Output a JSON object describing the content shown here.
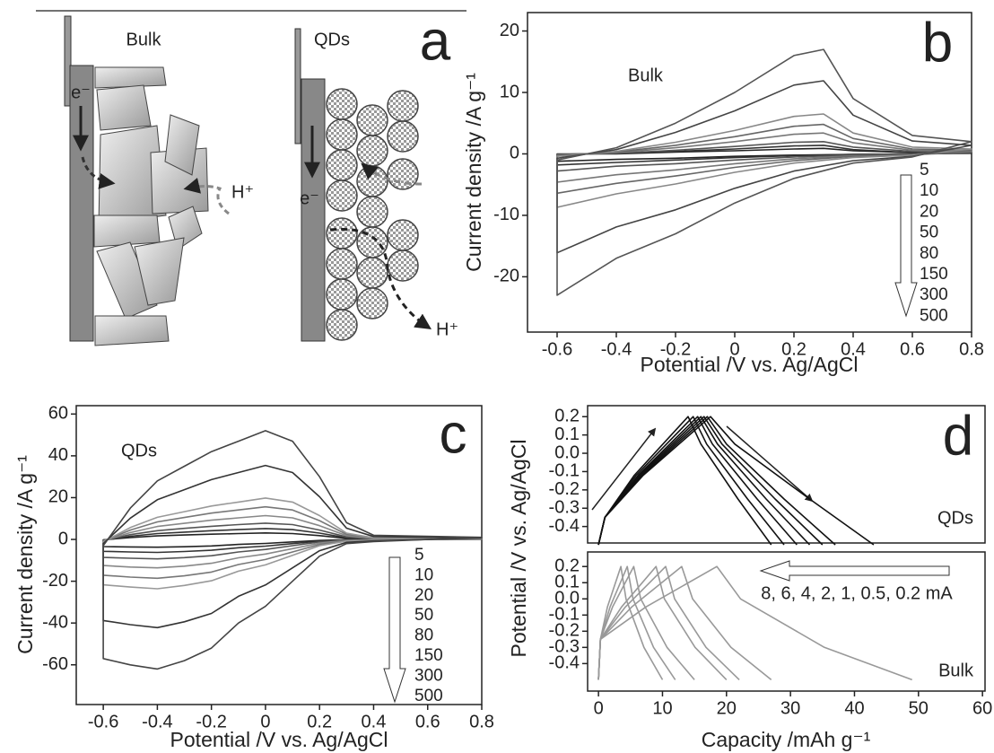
{
  "diagram": {
    "panel_label": "a",
    "bulk": {
      "title": "Bulk",
      "electron": "e⁻",
      "proton": "H⁺"
    },
    "qds": {
      "title": "QDs",
      "electron": "e⁻",
      "proton": "H⁺"
    }
  },
  "chart_data": [
    {
      "type": "line",
      "panel_label": "b",
      "annotation": "Bulk",
      "xlabel": "Potential /V vs. Ag/AgCl",
      "ylabel": "Current density /A g⁻¹",
      "xlim": [
        -0.7,
        0.8
      ],
      "ylim": [
        -29,
        23
      ],
      "xticks": [
        -0.6,
        -0.4,
        -0.2,
        0,
        0.2,
        0.4,
        0.6,
        0.8
      ],
      "yticks": [
        -20,
        -10,
        0,
        10,
        20
      ],
      "x": [
        -0.6,
        -0.4,
        -0.2,
        0,
        0.2,
        0.3,
        0.4,
        0.6,
        0.8,
        0.6,
        0.4,
        0.2,
        0,
        -0.2,
        -0.4,
        -0.6
      ],
      "series": [
        {
          "name": "5",
          "color": "#222",
          "values": [
            0,
            0,
            0.3,
            0.5,
            0.8,
            0.9,
            0.5,
            0.2,
            0.1,
            0,
            -0.1,
            -0.2,
            -0.4,
            -0.7,
            -0.9,
            -1.2
          ]
        },
        {
          "name": "10",
          "color": "#333",
          "values": [
            -0.1,
            0.1,
            0.4,
            0.8,
            1.3,
            1.4,
            0.7,
            0.2,
            0.2,
            0,
            -0.1,
            -0.3,
            -0.6,
            -1,
            -1.4,
            -1.8
          ]
        },
        {
          "name": "20",
          "color": "#555",
          "values": [
            -0.1,
            0.1,
            0.6,
            1.2,
            1.9,
            2,
            1.1,
            0.4,
            0.2,
            -0.1,
            -0.2,
            -0.5,
            -1,
            -1.6,
            -2,
            -2.8
          ]
        },
        {
          "name": "50",
          "color": "#777",
          "values": [
            -0.2,
            0.2,
            1,
            2,
            3.2,
            3.4,
            1.8,
            0.6,
            0.4,
            -0.1,
            -0.3,
            -0.8,
            -1.6,
            -2.6,
            -3.4,
            -4.6
          ]
        },
        {
          "name": "80",
          "color": "#666",
          "values": [
            -0.3,
            0.3,
            1.4,
            2.8,
            4.5,
            4.8,
            2.5,
            0.8,
            0.6,
            -0.1,
            -0.4,
            -1.1,
            -2.2,
            -3.6,
            -4.8,
            -6.4
          ]
        },
        {
          "name": "150",
          "color": "#888",
          "values": [
            -0.4,
            0.4,
            1.9,
            3.8,
            6.1,
            6.5,
            3.4,
            1.1,
            0.8,
            -0.2,
            -0.6,
            -1.5,
            -3,
            -4.9,
            -6.5,
            -8.7
          ]
        },
        {
          "name": "300",
          "color": "#444",
          "values": [
            -0.7,
            0.7,
            3.5,
            7,
            11.2,
            11.9,
            6.3,
            2.1,
            1.4,
            -0.4,
            -1.1,
            -2.8,
            -5.6,
            -9.1,
            -11.9,
            -16.1
          ]
        },
        {
          "name": "500",
          "color": "#555",
          "values": [
            -1,
            1,
            5,
            10,
            16,
            17,
            9,
            3,
            2,
            -0.5,
            -1.5,
            -4,
            -8,
            -13,
            -17,
            -23
          ]
        }
      ]
    },
    {
      "type": "line",
      "panel_label": "c",
      "annotation": "QDs",
      "xlabel": "Potential /V vs. Ag/AgCl",
      "ylabel": "Current density /A g⁻¹",
      "xlim": [
        -0.7,
        0.8
      ],
      "ylim": [
        -79,
        64
      ],
      "xticks": [
        -0.6,
        -0.4,
        -0.2,
        0,
        0.2,
        0.4,
        0.6,
        0.8
      ],
      "yticks": [
        -60,
        -40,
        -20,
        0,
        20,
        40,
        60
      ],
      "x": [
        -0.6,
        -0.5,
        -0.4,
        -0.3,
        -0.2,
        -0.1,
        0,
        0.1,
        0.2,
        0.3,
        0.4,
        0.8,
        0.4,
        0.3,
        0.2,
        0.1,
        0,
        -0.1,
        -0.2,
        -0.3,
        -0.4,
        -0.5,
        -0.6
      ],
      "series": [
        {
          "name": "5",
          "color": "#222",
          "values": [
            -0.2,
            0.9,
            1.7,
            2.1,
            2.5,
            2.8,
            3.1,
            2.8,
            1.8,
            0.5,
            0.1,
            0.1,
            -0.1,
            -0.1,
            -0.5,
            -1.2,
            -1.9,
            -2.4,
            -3.1,
            -3.5,
            -3.7,
            -3.6,
            -3.4
          ]
        },
        {
          "name": "10",
          "color": "#333",
          "values": [
            -0.3,
            1.5,
            2.8,
            3.5,
            4.2,
            4.7,
            5.2,
            4.7,
            3,
            0.8,
            0.2,
            0.1,
            -0.1,
            -0.2,
            -0.8,
            -2,
            -3.2,
            -4,
            -5.2,
            -5.8,
            -6.2,
            -6,
            -5.7
          ]
        },
        {
          "name": "20",
          "color": "#555",
          "values": [
            -0.5,
            2.3,
            4.2,
            5.3,
            6.3,
            7.1,
            7.8,
            7.1,
            4.5,
            1.2,
            0.3,
            0.2,
            -0.2,
            -0.3,
            -1.2,
            -3,
            -4.8,
            -6,
            -7.8,
            -8.7,
            -9.3,
            -9,
            -8.6
          ]
        },
        {
          "name": "50",
          "color": "#888",
          "values": [
            -0.7,
            3.3,
            6.2,
            7.7,
            9.2,
            10.3,
            11.4,
            10.3,
            6.6,
            1.8,
            0.4,
            0.2,
            -0.2,
            -0.4,
            -1.8,
            -4.4,
            -7,
            -8.8,
            -11.4,
            -12.8,
            -13.6,
            -13.2,
            -12.5
          ]
        },
        {
          "name": "80",
          "color": "#777",
          "values": [
            -0.9,
            4.5,
            8.4,
            10.5,
            12.6,
            14.1,
            15.6,
            14.1,
            9,
            2.4,
            0.6,
            0.3,
            -0.3,
            -0.6,
            -2.4,
            -6,
            -9.6,
            -12,
            -15.6,
            -17.4,
            -18.6,
            -18,
            -17.1
          ]
        },
        {
          "name": "150",
          "color": "#999",
          "values": [
            -1.1,
            5.7,
            10.6,
            13.3,
            16,
            17.9,
            19.8,
            17.9,
            11.4,
            3,
            0.8,
            0.4,
            -0.4,
            -0.8,
            -3,
            -7.6,
            -12.2,
            -15.2,
            -19.8,
            -22,
            -23.6,
            -22.8,
            -21.7
          ]
        },
        {
          "name": "300",
          "color": "#333",
          "values": [
            -2,
            10.2,
            19,
            23.8,
            28.6,
            32,
            35.4,
            32,
            20.4,
            5.4,
            1.4,
            0.7,
            -0.7,
            -1.4,
            -5.4,
            -13.6,
            -21.8,
            -27.2,
            -35.4,
            -39.4,
            -42.2,
            -40.8,
            -38.8
          ]
        },
        {
          "name": "500",
          "color": "#444",
          "values": [
            -3,
            15,
            28,
            35,
            42,
            47,
            52,
            47,
            30,
            8,
            2,
            1,
            -1,
            -2,
            -8,
            -20,
            -32,
            -40,
            -52,
            -58,
            -62,
            -60,
            -57
          ]
        }
      ]
    },
    {
      "type": "line",
      "panel_label": "d",
      "annotation": "QDs",
      "ylabel": "Potential /V vs. Ag/AgCl",
      "xlim": [
        -1.7,
        60.4
      ],
      "ylim": [
        -0.49,
        0.26
      ],
      "yticks": [
        -0.4,
        -0.3,
        -0.2,
        -0.1,
        {
          "value": 0,
          "label": "0.0"
        },
        0.1,
        0.2
      ],
      "series": [
        {
          "color": "#111",
          "x": [
            0,
            1,
            5.6,
            14,
            16,
            21.8,
            27
          ],
          "values": [
            -0.5,
            -0.35,
            -0.12,
            0.2,
            0.05,
            -0.25,
            -0.5
          ]
        },
        {
          "color": "#111",
          "x": [
            0,
            1,
            5.9,
            14.8,
            16.9,
            23.3,
            29
          ],
          "values": [
            -0.5,
            -0.35,
            -0.12,
            0.2,
            0.05,
            -0.25,
            -0.5
          ]
        },
        {
          "color": "#111",
          "x": [
            0,
            1,
            6.2,
            15.5,
            17.8,
            24.8,
            31
          ],
          "values": [
            -0.5,
            -0.35,
            -0.12,
            0.2,
            0.05,
            -0.25,
            -0.5
          ]
        },
        {
          "color": "#111",
          "x": [
            0,
            1,
            6.4,
            16,
            18.6,
            26.2,
            33
          ],
          "values": [
            -0.5,
            -0.35,
            -0.12,
            0.2,
            0.05,
            -0.25,
            -0.5
          ]
        },
        {
          "color": "#111",
          "x": [
            0,
            1,
            6.6,
            16.5,
            19.3,
            27.6,
            35
          ],
          "values": [
            -0.5,
            -0.35,
            -0.12,
            0.2,
            0.05,
            -0.25,
            -0.5
          ]
        },
        {
          "color": "#111",
          "x": [
            0,
            1,
            6.8,
            17,
            20,
            29,
            37
          ],
          "values": [
            -0.5,
            -0.35,
            -0.12,
            0.2,
            0.05,
            -0.25,
            -0.5
          ]
        },
        {
          "color": "#111",
          "x": [
            0,
            1,
            7,
            17.5,
            21.3,
            33,
            43
          ],
          "values": [
            -0.5,
            -0.35,
            -0.12,
            0.2,
            0.05,
            -0.25,
            -0.5
          ]
        }
      ]
    },
    {
      "type": "line",
      "annotation": "Bulk",
      "note": "8, 6, 4, 2, 1, 0.5, 0.2 mA",
      "xlabel": "Capacity /mAh g⁻¹",
      "xlim": [
        -1.7,
        60.4
      ],
      "ylim": [
        -0.57,
        0.29
      ],
      "xticks": [
        0,
        10,
        20,
        30,
        40,
        50,
        60
      ],
      "yticks": [
        -0.4,
        -0.3,
        -0.2,
        -0.1,
        {
          "value": 0,
          "label": "0.0"
        },
        0.1,
        0.2
      ],
      "series": [
        {
          "color": "#999",
          "x": [
            0,
            0.3,
            1.4,
            3.5,
            4.3,
            7.1,
            10
          ],
          "values": [
            -0.5,
            -0.25,
            -0.05,
            0.2,
            0,
            -0.3,
            -0.5
          ]
        },
        {
          "color": "#999",
          "x": [
            0,
            0.3,
            1.8,
            4.5,
            5.4,
            8.6,
            12
          ],
          "values": [
            -0.5,
            -0.25,
            -0.05,
            0.2,
            0,
            -0.3,
            -0.5
          ]
        },
        {
          "color": "#999",
          "x": [
            0,
            0.3,
            2.2,
            5.5,
            6.6,
            10.7,
            15
          ],
          "values": [
            -0.5,
            -0.25,
            -0.05,
            0.2,
            0,
            -0.3,
            -0.5
          ]
        },
        {
          "color": "#999",
          "x": [
            0,
            0.3,
            3.6,
            9,
            10.3,
            15.1,
            20
          ],
          "values": [
            -0.5,
            -0.25,
            -0.05,
            0.2,
            0,
            -0.3,
            -0.5
          ]
        },
        {
          "color": "#999",
          "x": [
            0,
            0.3,
            4.2,
            10.5,
            11.9,
            16.8,
            22
          ],
          "values": [
            -0.5,
            -0.25,
            -0.05,
            0.2,
            0,
            -0.3,
            -0.5
          ]
        },
        {
          "color": "#999",
          "x": [
            0,
            0.3,
            5.2,
            13,
            14.7,
            20.7,
            27
          ],
          "values": [
            -0.5,
            -0.25,
            -0.05,
            0.2,
            0,
            -0.3,
            -0.5
          ]
        },
        {
          "color": "#999",
          "x": [
            0,
            0.3,
            7.4,
            18.5,
            22.2,
            35.3,
            49
          ],
          "values": [
            -0.5,
            -0.25,
            -0.05,
            0.2,
            0,
            -0.3,
            -0.5
          ]
        }
      ]
    }
  ]
}
